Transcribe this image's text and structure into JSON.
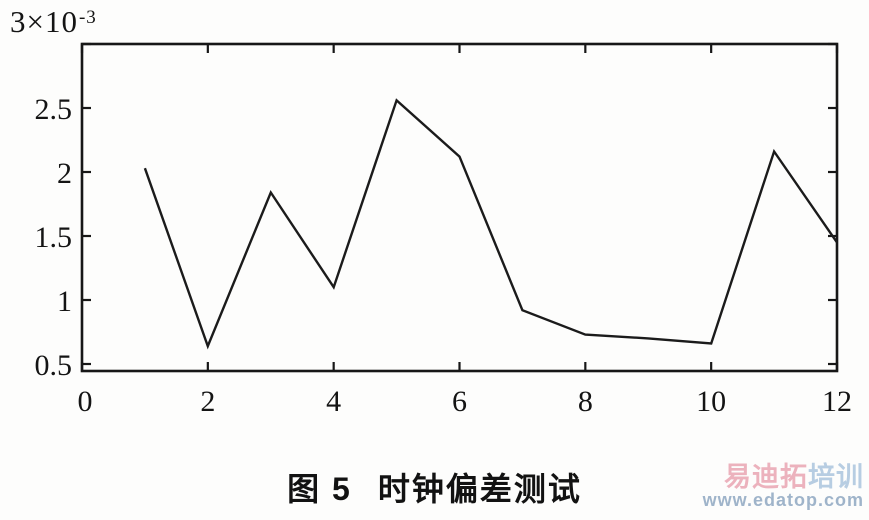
{
  "figure": {
    "caption_number": "图 5",
    "caption_title": "时钟偏差测试"
  },
  "y_scale": {
    "base": "3×10",
    "exponent": "-3"
  },
  "watermark": {
    "brand_primary": "易迪拓",
    "brand_secondary": "培训",
    "url": "www.edatop.com",
    "color_primary": "#ecb2bd",
    "color_secondary": "#b7cde2",
    "color_url": "#9fb4ca"
  },
  "chart_data": {
    "type": "line",
    "title": "时钟偏差测试",
    "xlabel": "",
    "ylabel": "",
    "x": [
      1,
      2,
      3,
      4,
      5,
      6,
      7,
      8,
      9,
      10,
      11,
      12
    ],
    "values": [
      2.03,
      0.64,
      1.84,
      1.1,
      2.56,
      2.12,
      0.92,
      0.73,
      0.7,
      0.66,
      2.16,
      1.45
    ],
    "value_unit": "×10^-3",
    "xlim": [
      0,
      12
    ],
    "ylim": [
      0.5,
      3
    ],
    "x_ticks": [
      0,
      2,
      4,
      6,
      8,
      10,
      12
    ],
    "x_tick_labels": [
      "0",
      "2",
      "4",
      "6",
      "8",
      "10",
      "12"
    ],
    "y_ticks": [
      0.5,
      1,
      1.5,
      2,
      2.5,
      3
    ],
    "y_tick_labels": [
      "0.5",
      "1",
      "1.5",
      "2",
      "2.5",
      "3"
    ],
    "y_scale_label": "3×10⁻³",
    "grid": false,
    "legend": "none",
    "box": true,
    "line_color": "#1b1b1b",
    "axis_color": "#171717"
  }
}
